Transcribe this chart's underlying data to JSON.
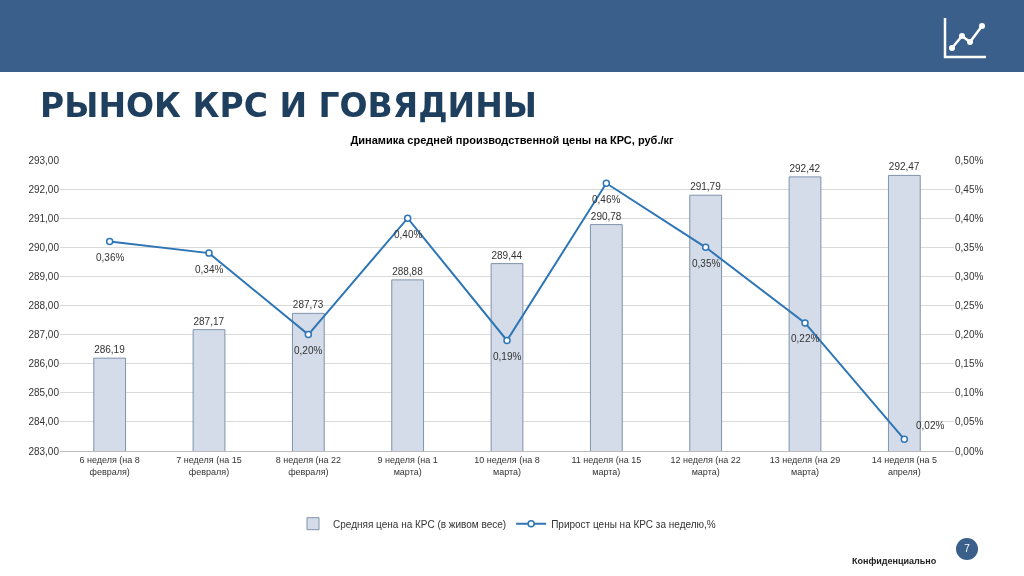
{
  "chart_data": {
    "type": "bar",
    "title": "РЫНОК КРС И ГОВЯДИНЫ",
    "subtitle": "Динамика средней производственной цены на КРС, руб./кг",
    "categories": [
      "6 неделя  (на 8 февраля)",
      "7 неделя  (на 15 февраля)",
      "8 неделя  (на 22 февраля)",
      "9 неделя  (на 1 марта)",
      "10 неделя  (на 8 марта)",
      "11 неделя  (на 15 марта)",
      "12 неделя  (на 22 марта)",
      "13 неделя  (на 29 марта)",
      "14 неделя  (на 5 апреля)"
    ],
    "series": [
      {
        "name": "Средняя цена на КРС (в живом весе)",
        "color": "#d3dce8",
        "values": [
          286.19,
          287.17,
          287.73,
          288.88,
          289.44,
          290.78,
          291.79,
          292.42,
          292.47
        ],
        "value_labels": [
          "286,19",
          "287,17",
          "287,73",
          "288,88",
          "289,44",
          "290,78",
          "291,79",
          "292,42",
          "292,47"
        ]
      },
      {
        "name": "Прирост цены на КРС за неделю,%",
        "type": "line",
        "axis": "y2",
        "color": "#2e75b6",
        "marker": "circle",
        "values": [
          0.36,
          0.34,
          0.2,
          0.4,
          0.19,
          0.46,
          0.35,
          0.22,
          0.02
        ],
        "value_labels": [
          "0,36%",
          "0,34%",
          "0,20%",
          "0,40%",
          "0,19%",
          "0,46%",
          "0,35%",
          "0,22%",
          "0,02%"
        ]
      }
    ],
    "ylim": [
      283,
      293
    ],
    "yticks": [
      {
        "value": 283,
        "label": "283,00"
      },
      {
        "value": 284,
        "label": "284,00"
      },
      {
        "value": 285,
        "label": "285,00"
      },
      {
        "value": 286,
        "label": "286,00"
      },
      {
        "value": 287,
        "label": "287,00"
      },
      {
        "value": 288,
        "label": "288,00"
      },
      {
        "value": 289,
        "label": "289,00"
      },
      {
        "value": 290,
        "label": "290,00"
      },
      {
        "value": 291,
        "label": "291,00"
      },
      {
        "value": 292,
        "label": "292,00"
      },
      {
        "value": 293,
        "label": "293,00"
      }
    ],
    "y2lim": [
      0,
      0.5
    ],
    "y2ticks": [
      {
        "value": 0,
        "label": "0,00%"
      },
      {
        "value": 0.05,
        "label": "0,05%"
      },
      {
        "value": 0.1,
        "label": "0,10%"
      },
      {
        "value": 0.15,
        "label": "0,15%"
      },
      {
        "value": 0.2,
        "label": "0,20%"
      },
      {
        "value": 0.25,
        "label": "0,25%"
      },
      {
        "value": 0.3,
        "label": "0,30%"
      },
      {
        "value": 0.35,
        "label": "0,35%"
      },
      {
        "value": 0.4,
        "label": "0,40%"
      },
      {
        "value": 0.45,
        "label": "0,45%"
      },
      {
        "value": 0.5,
        "label": "0,50%"
      }
    ],
    "grid": "y",
    "legend": "bottom",
    "annotations": [
      "Конфиденциально",
      "7"
    ]
  }
}
